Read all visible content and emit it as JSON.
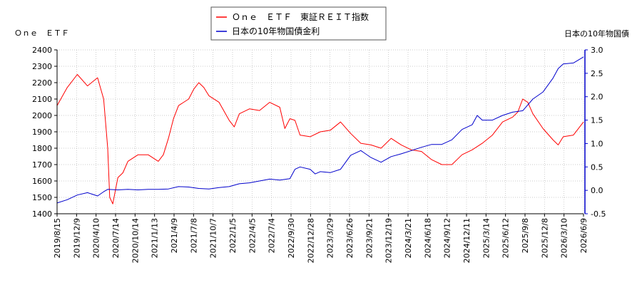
{
  "chart_data": {
    "type": "line",
    "y_left_label": "Ｏｎｅ　ＥＴＦ",
    "y_right_label": "日本の10年物国債",
    "ylim_left": [
      1400,
      2400
    ],
    "ylim_right": [
      -0.5,
      3.0
    ],
    "y_left_ticks": [
      1400,
      1500,
      1600,
      1700,
      1800,
      1900,
      2000,
      2100,
      2200,
      2300,
      2400
    ],
    "y_right_ticks": [
      "-0.5",
      "0.0",
      "0.5",
      "1.0",
      "1.5",
      "2.0",
      "2.5",
      "3.0"
    ],
    "x_ticks": [
      "2019/8/15",
      "2019/12/9",
      "2020/4/10",
      "2020/7/14",
      "2020/10/14",
      "2021/1/13",
      "2021/4/9",
      "2021/7/8",
      "2021/10/7",
      "2022/1/5",
      "2022/4/5",
      "2022/7/4",
      "2022/9/30",
      "2022/12/28",
      "2023/3/29",
      "2023/6/26",
      "2023/9/21",
      "2023/12/19",
      "2024/3/21",
      "2024/6/18",
      "2024/9/12",
      "2024/12/11",
      "2025/3/14",
      "2025/6/12",
      "2025/9/8",
      "2025/12/8",
      "2026/3/10",
      "2026/6/9"
    ],
    "legend_position": "top-center",
    "series": [
      {
        "name": "Ｏｎｅ　ＥＴＦ　東証ＲＥＩＴ指数",
        "color": "#ff0000",
        "axis": "left",
        "values": [
          [
            0,
            2060
          ],
          [
            1,
            2170
          ],
          [
            2,
            2250
          ],
          [
            3,
            2180
          ],
          [
            4,
            2230
          ],
          [
            4.6,
            2100
          ],
          [
            5,
            1800
          ],
          [
            5.2,
            1500
          ],
          [
            5.5,
            1460
          ],
          [
            6,
            1620
          ],
          [
            6.5,
            1650
          ],
          [
            7,
            1720
          ],
          [
            8,
            1760
          ],
          [
            9,
            1760
          ],
          [
            10,
            1720
          ],
          [
            10.5,
            1760
          ],
          [
            11,
            1860
          ],
          [
            11.5,
            1980
          ],
          [
            12,
            2060
          ],
          [
            13,
            2100
          ],
          [
            13.5,
            2160
          ],
          [
            14,
            2200
          ],
          [
            14.5,
            2170
          ],
          [
            15,
            2120
          ],
          [
            16,
            2080
          ],
          [
            17,
            1970
          ],
          [
            17.5,
            1930
          ],
          [
            18,
            2010
          ],
          [
            19,
            2040
          ],
          [
            20,
            2030
          ],
          [
            21,
            2080
          ],
          [
            22,
            2050
          ],
          [
            22.5,
            1920
          ],
          [
            23,
            1980
          ],
          [
            23.5,
            1970
          ],
          [
            24,
            1880
          ],
          [
            25,
            1870
          ],
          [
            26,
            1900
          ],
          [
            27,
            1910
          ],
          [
            28,
            1960
          ],
          [
            29,
            1890
          ],
          [
            30,
            1830
          ],
          [
            31,
            1820
          ],
          [
            32,
            1800
          ],
          [
            33,
            1860
          ],
          [
            34,
            1820
          ],
          [
            35,
            1790
          ],
          [
            36,
            1780
          ],
          [
            37,
            1730
          ],
          [
            38,
            1700
          ],
          [
            39,
            1700
          ],
          [
            40,
            1760
          ],
          [
            41,
            1790
          ],
          [
            42,
            1830
          ],
          [
            43,
            1880
          ],
          [
            44,
            1960
          ],
          [
            45,
            1990
          ],
          [
            45.5,
            2020
          ],
          [
            46,
            2100
          ],
          [
            46.5,
            2080
          ],
          [
            47,
            2010
          ],
          [
            48,
            1920
          ],
          [
            49,
            1850
          ],
          [
            49.5,
            1820
          ],
          [
            50,
            1870
          ],
          [
            51,
            1880
          ],
          [
            52,
            1960
          ]
        ]
      },
      {
        "name": "日本の10年物国債金利",
        "color": "#0000cc",
        "axis": "right",
        "values": [
          [
            0,
            -0.27
          ],
          [
            1,
            -0.2
          ],
          [
            2,
            -0.1
          ],
          [
            3,
            -0.05
          ],
          [
            4,
            -0.12
          ],
          [
            4.6,
            -0.03
          ],
          [
            5,
            0.02
          ],
          [
            6,
            0.01
          ],
          [
            7,
            0.02
          ],
          [
            8,
            0.01
          ],
          [
            9,
            0.02
          ],
          [
            10,
            0.02
          ],
          [
            11,
            0.03
          ],
          [
            12,
            0.08
          ],
          [
            13,
            0.07
          ],
          [
            14,
            0.04
          ],
          [
            15,
            0.03
          ],
          [
            16,
            0.06
          ],
          [
            17,
            0.08
          ],
          [
            18,
            0.14
          ],
          [
            19,
            0.16
          ],
          [
            20,
            0.2
          ],
          [
            21,
            0.24
          ],
          [
            22,
            0.22
          ],
          [
            23,
            0.25
          ],
          [
            23.5,
            0.45
          ],
          [
            24,
            0.5
          ],
          [
            25,
            0.45
          ],
          [
            25.5,
            0.35
          ],
          [
            26,
            0.4
          ],
          [
            27,
            0.38
          ],
          [
            28,
            0.45
          ],
          [
            29,
            0.75
          ],
          [
            30,
            0.85
          ],
          [
            31,
            0.7
          ],
          [
            32,
            0.6
          ],
          [
            33,
            0.72
          ],
          [
            34,
            0.78
          ],
          [
            35,
            0.85
          ],
          [
            36,
            0.92
          ],
          [
            37,
            0.98
          ],
          [
            38,
            0.98
          ],
          [
            39,
            1.08
          ],
          [
            40,
            1.3
          ],
          [
            41,
            1.4
          ],
          [
            41.5,
            1.6
          ],
          [
            42,
            1.5
          ],
          [
            43,
            1.5
          ],
          [
            44,
            1.6
          ],
          [
            45,
            1.67
          ],
          [
            46,
            1.7
          ],
          [
            47,
            1.95
          ],
          [
            48,
            2.1
          ],
          [
            49,
            2.4
          ],
          [
            49.5,
            2.6
          ],
          [
            50,
            2.7
          ],
          [
            51,
            2.72
          ],
          [
            52,
            2.85
          ]
        ]
      }
    ]
  }
}
